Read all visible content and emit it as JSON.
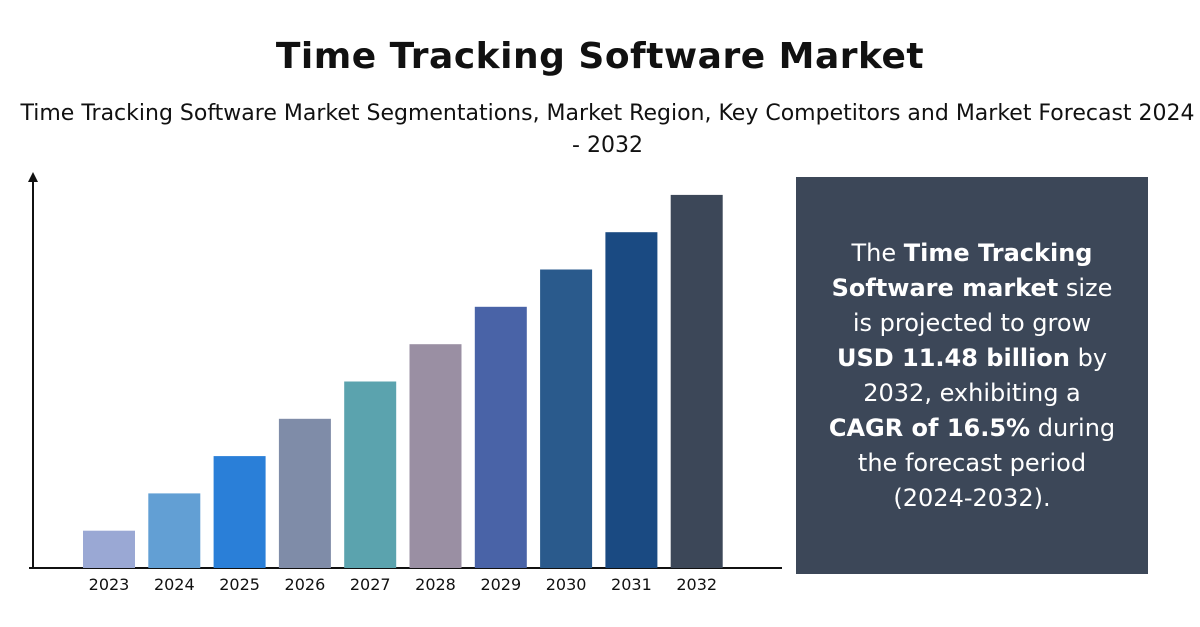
{
  "title": "Time Tracking Software Market",
  "subtitle": "Time Tracking Software Market Segmentations, Market Region, Key Competitors and Market Forecast 2024 - 2032",
  "panel": {
    "t1": "The ",
    "b1": "Time Tracking Software market",
    "t2": " size is projected to grow ",
    "b2": "USD 11.48 billion",
    "t3": " by 2032, exhibiting a ",
    "b3": "CAGR of 16.5%",
    "t4": " during the forecast period (2024-2032).",
    "background": "#3c4758"
  },
  "chart_data": {
    "type": "bar",
    "categories": [
      "2023",
      "2024",
      "2025",
      "2026",
      "2027",
      "2028",
      "2029",
      "2030",
      "2031",
      "2032"
    ],
    "values": [
      1,
      2,
      3,
      4,
      5,
      6,
      7,
      8,
      9,
      10
    ],
    "colors": [
      "#9aa8d4",
      "#629fd4",
      "#2a7fd8",
      "#7f8ca8",
      "#5ba3ae",
      "#9a8fa3",
      "#4963a7",
      "#2a5a8c",
      "#1a4a82",
      "#3c4758"
    ],
    "ylim": [
      0,
      10.4
    ],
    "grid": false,
    "xlabel": "",
    "ylabel": ""
  }
}
